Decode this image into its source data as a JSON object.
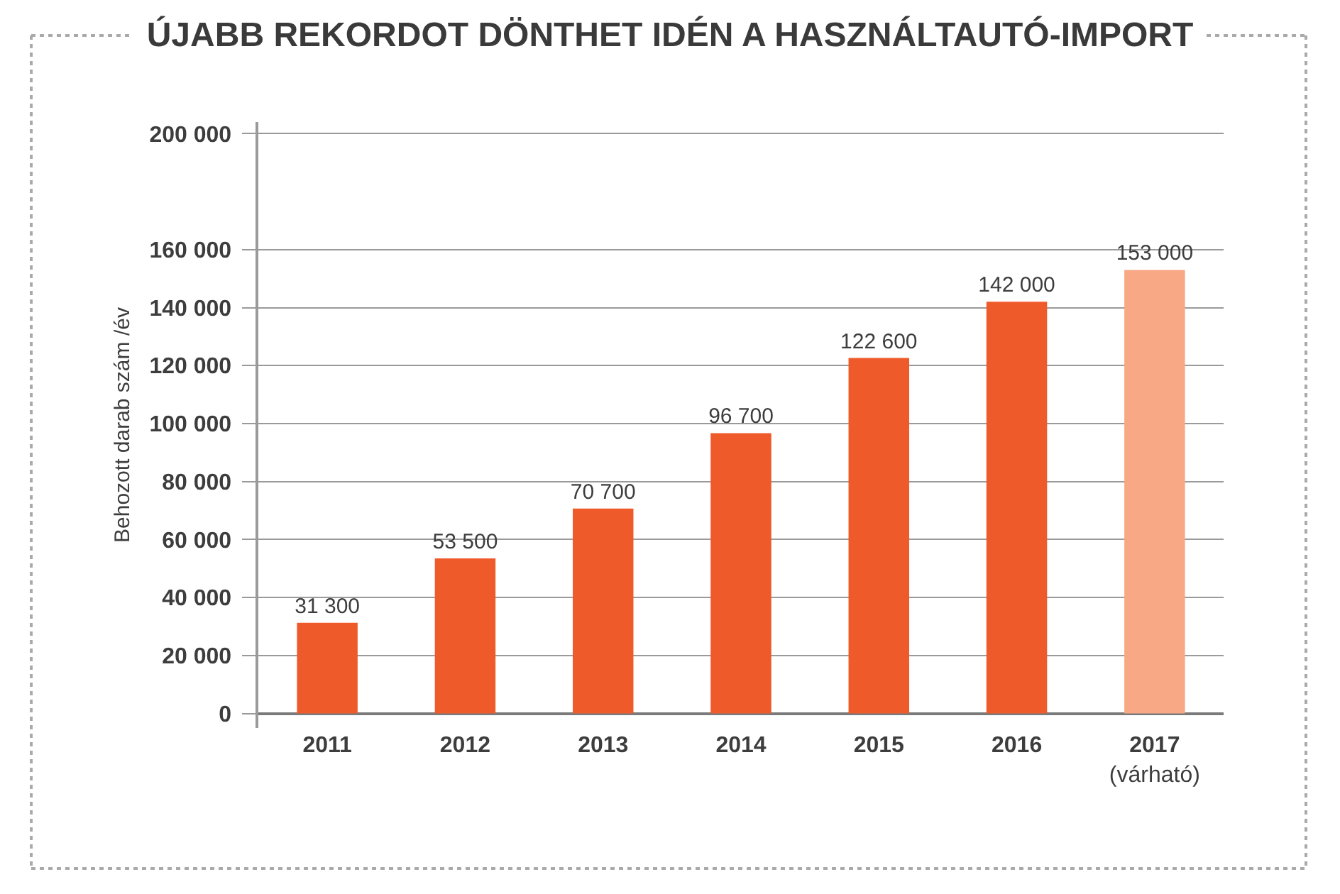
{
  "chart_data": {
    "type": "bar",
    "title": "ÚJABB REKORDOT DÖNTHET IDÉN A HASZNÁLTAUTÓ-IMPORT",
    "ylabel": "Behozott darab szám /év",
    "categories": [
      "2011",
      "2012",
      "2013",
      "2014",
      "2015",
      "2016",
      "2017\n(várható)"
    ],
    "values": [
      31300,
      53500,
      70700,
      96700,
      122600,
      142000,
      153000
    ],
    "colors": [
      "#ef5a2a",
      "#ef5a2a",
      "#ef5a2a",
      "#ef5a2a",
      "#ef5a2a",
      "#ef5a2a",
      "#f8a884"
    ],
    "value_labels": [
      "31 300",
      "53 500",
      "70 700",
      "96 700",
      "122 600",
      "142 000",
      "153 000"
    ],
    "ylim": [
      -5000,
      204000
    ],
    "yticks": [
      0,
      {
        "value": 20000,
        "label": "20 000"
      },
      {
        "value": 40000,
        "label": "40 000"
      },
      {
        "value": 60000,
        "label": "60 000"
      },
      {
        "value": 80000,
        "label": "80 000"
      },
      {
        "value": 100000,
        "label": "100 000"
      },
      {
        "value": 120000,
        "label": "120 000"
      },
      {
        "value": 140000,
        "label": "140 000"
      },
      {
        "value": 160000,
        "label": "160 000"
      },
      {
        "value": 200000,
        "label": "200 000"
      }
    ],
    "grid": "y"
  }
}
